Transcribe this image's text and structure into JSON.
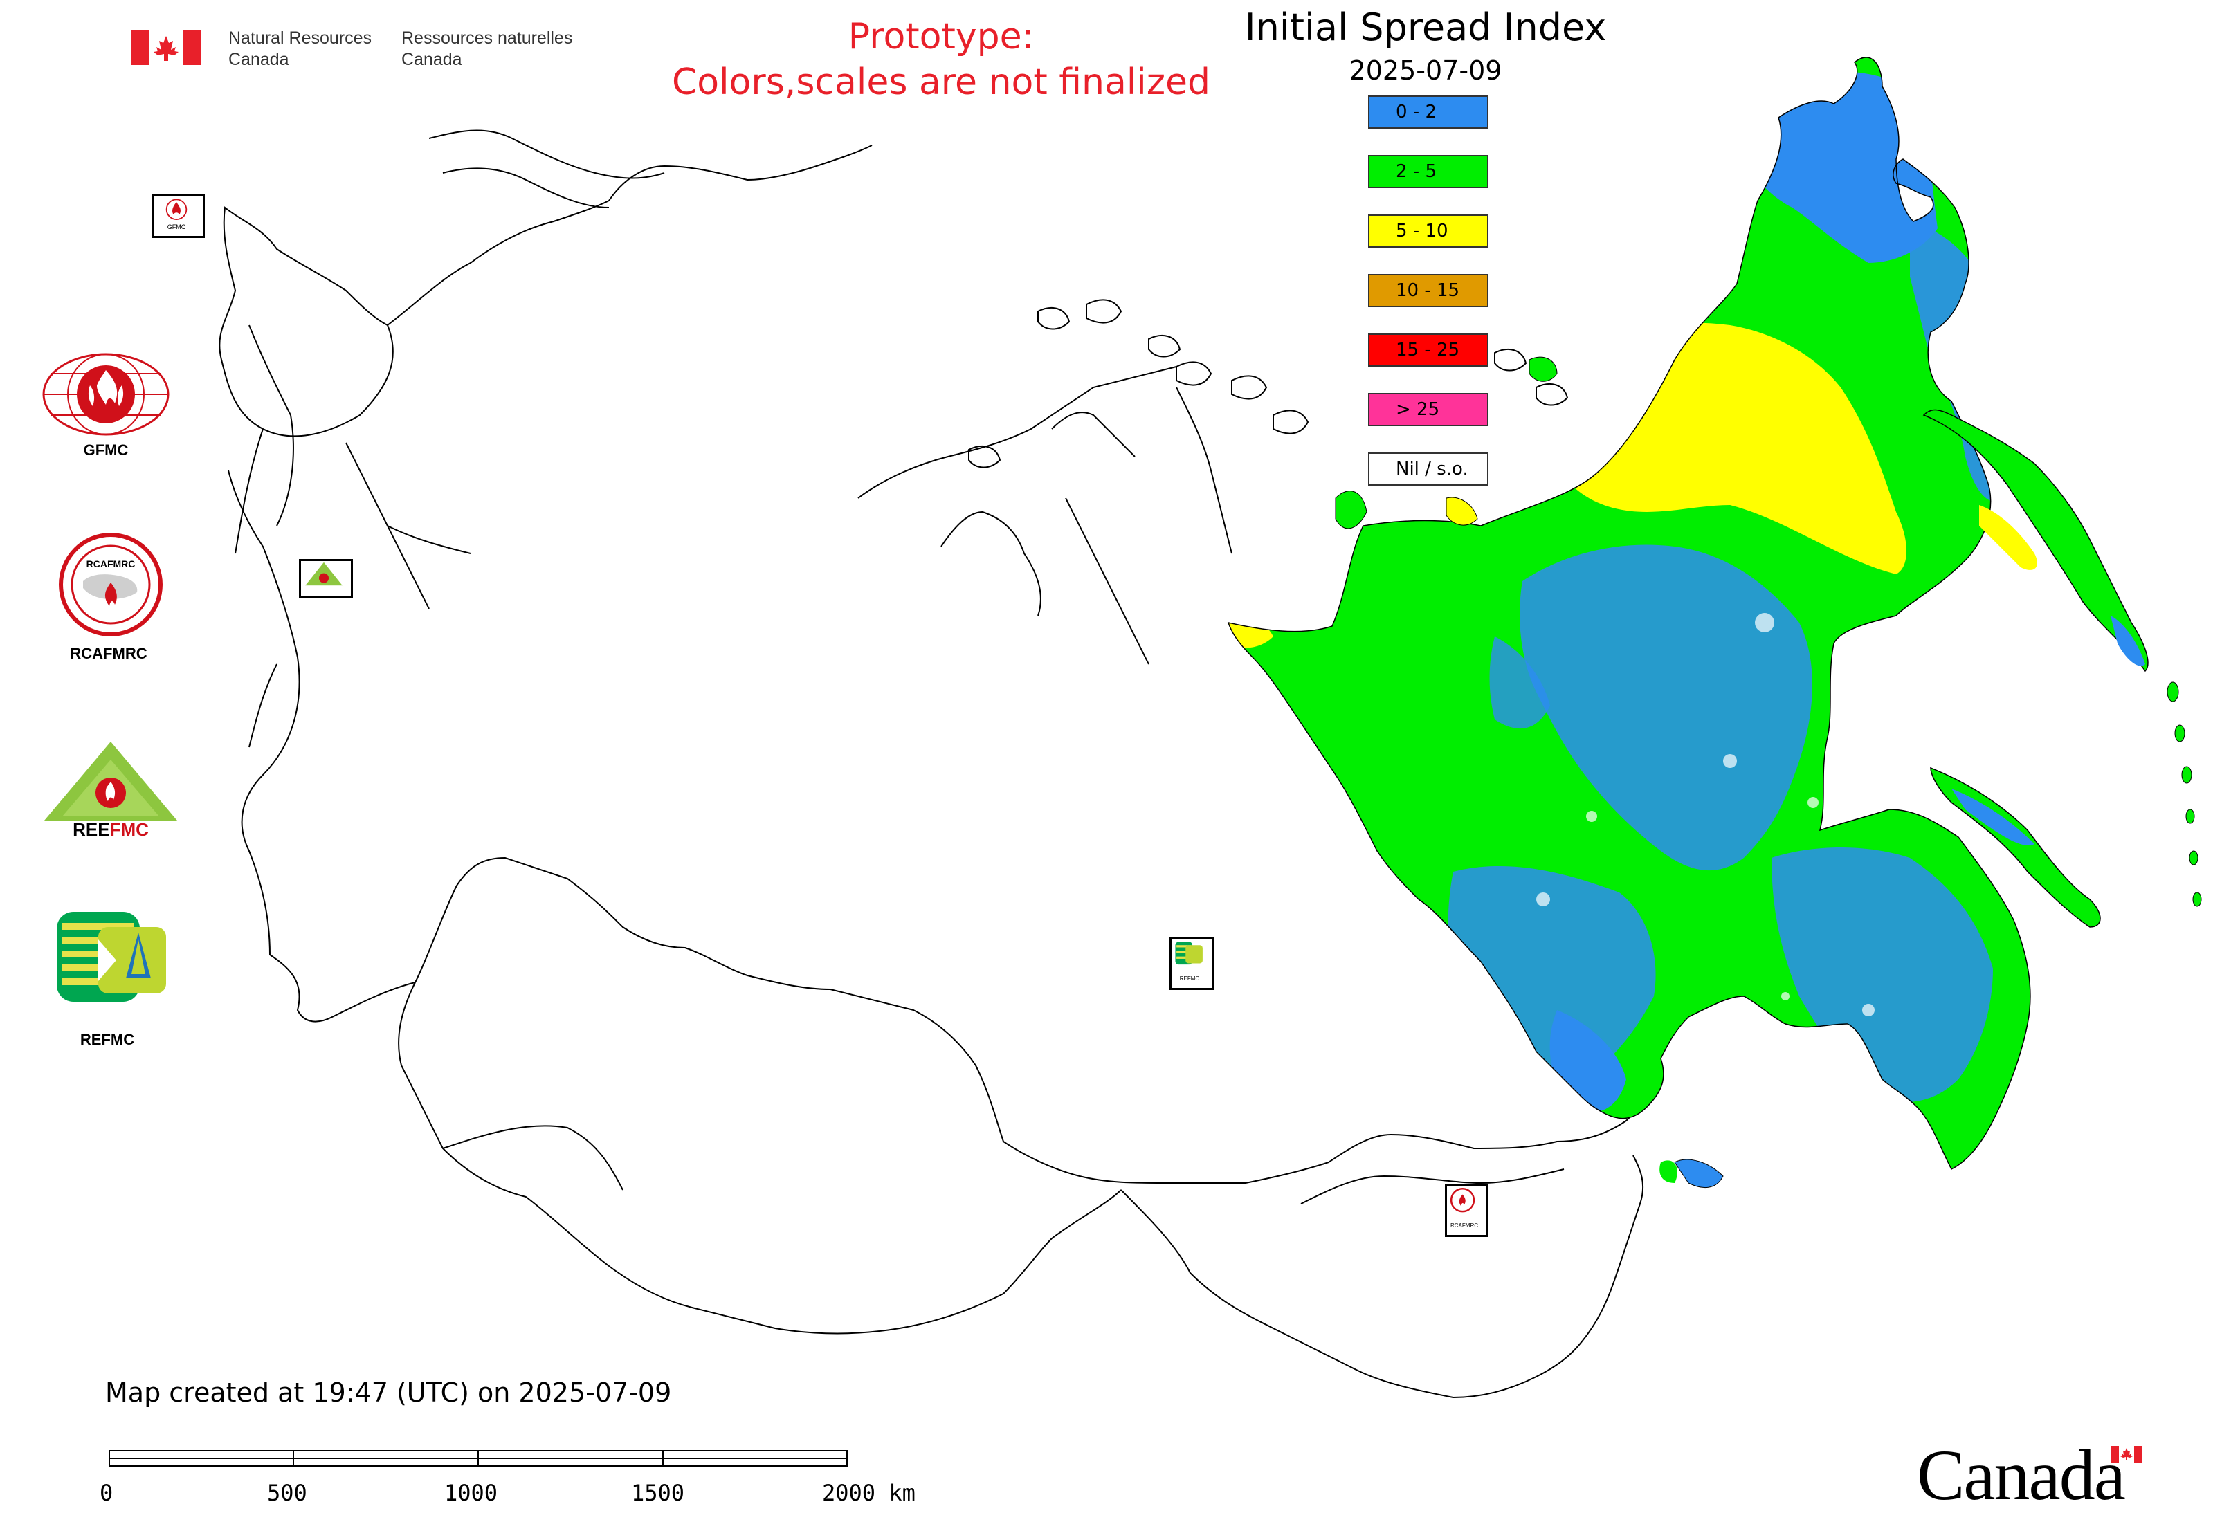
{
  "header": {
    "dept_en": "Natural Resources Canada",
    "dept_en_line1": "Natural Resources",
    "dept_en_line2": "Canada",
    "dept_fr_line1": "Ressources naturelles",
    "dept_fr_line2": "Canada",
    "prototype_line1": "Prototype:",
    "prototype_line2": "Colors,scales are not finalized",
    "title": "Initial Spread Index",
    "date": "2025-07-09"
  },
  "legend": [
    {
      "label": "0 - 2",
      "color": "#2d8cf0"
    },
    {
      "label": "2 - 5",
      "color": "#00ee00"
    },
    {
      "label": "5 - 10",
      "color": "#ffff00"
    },
    {
      "label": "10 - 15",
      "color": "#e09a00"
    },
    {
      "label": "15 - 25",
      "color": "#ff0000"
    },
    {
      "label": "> 25",
      "color": "#ff3399"
    },
    {
      "label": "Nil / s.o.",
      "color": "#ffffff"
    }
  ],
  "logos": {
    "gfmc": "GFMC",
    "rcafmrc": "RCAFMRC",
    "reefmc": "REEFMC",
    "refmc": "REFMC",
    "rcafmrc_badge_text": "RCAFMRC",
    "map_badge_refmc": "REFMC",
    "map_badge_rcafmrc": "RCAFMRC",
    "map_badge_gfmc": "GFMC"
  },
  "footer": {
    "created": "Map created at 19:47 (UTC) on 2025-07-09"
  },
  "scalebar": {
    "ticks": [
      "0",
      "500",
      "1000",
      "1500",
      "2000 km"
    ]
  },
  "wordmark": "Canada",
  "colors": {
    "low": "#2d8cf0",
    "moderate": "#00ee00",
    "high": "#ffff00",
    "prototype_text": "#e8202a"
  }
}
